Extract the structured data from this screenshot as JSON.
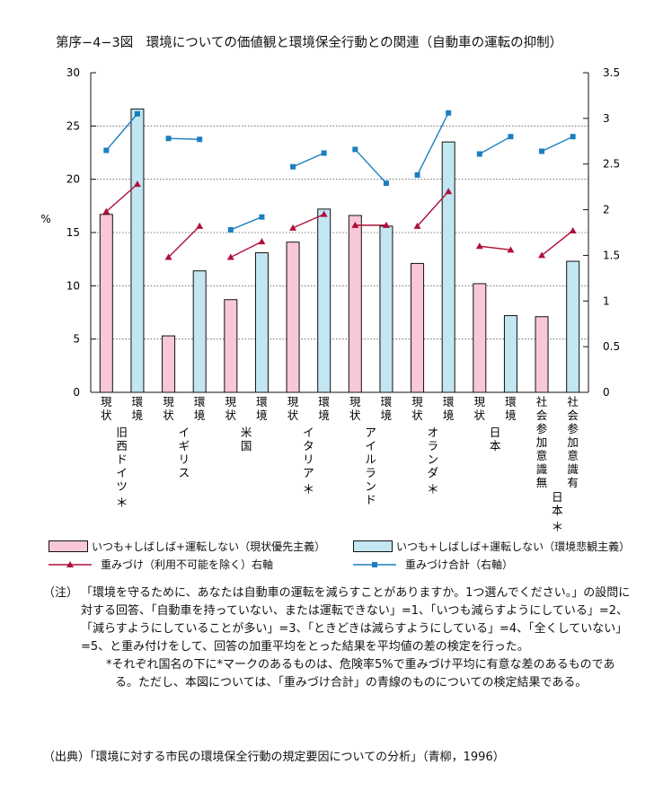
{
  "title": "第序−4−3図　環境についての価値観と環境保全行動との関連（自動車の運転の抑制）",
  "chart_data": {
    "type": "bar",
    "title": "第序−4−3図　環境についての価値観と環境保全行動との関連（自動車の運転の抑制）",
    "ylabel": "%",
    "ylim": [
      0,
      30
    ],
    "y_ticks": [
      "0",
      "5",
      "10",
      "15",
      "20",
      "25",
      "30"
    ],
    "y2lim": [
      0,
      3.5
    ],
    "y2_ticks": [
      "0",
      "0.5",
      "1",
      "1.5",
      "2",
      "2.5",
      "3",
      "3.5"
    ],
    "grid": "dotted horizontal",
    "categories": [
      "現状",
      "環境",
      "現状",
      "環境",
      "現状",
      "環境",
      "現状",
      "環境",
      "現状",
      "環境",
      "現状",
      "環境",
      "現状",
      "環境",
      "社会参加意識無",
      "社会参加意識有"
    ],
    "groups": [
      {
        "label": "旧西ドイツ",
        "mark": "＊"
      },
      {
        "label": "イギリス",
        "mark": ""
      },
      {
        "label": "米国",
        "mark": ""
      },
      {
        "label": "イタリア",
        "mark": "＊"
      },
      {
        "label": "アイルランド",
        "mark": ""
      },
      {
        "label": "オランダ",
        "mark": "＊"
      },
      {
        "label": "日本",
        "mark": ""
      },
      {
        "label": "日本",
        "mark": "＊"
      }
    ],
    "series": [
      {
        "name": "いつも+しばしば+運転しない（現状優先主義）",
        "axis": "left",
        "kind": "bar",
        "color": "#f9c8d6",
        "values": [
          16.7,
          null,
          5.3,
          null,
          8.7,
          null,
          14.1,
          null,
          16.6,
          null,
          12.1,
          null,
          10.2,
          null,
          7.1,
          null
        ]
      },
      {
        "name": "いつも+しばしば+運転しない（環境悲観主義）",
        "axis": "left",
        "kind": "bar",
        "color": "#c2e6f2",
        "values": [
          null,
          26.6,
          null,
          11.4,
          null,
          13.1,
          null,
          17.2,
          null,
          15.6,
          null,
          23.5,
          null,
          7.2,
          null,
          12.3
        ]
      },
      {
        "name": "重みづけ（利用不可能を除く）右軸",
        "axis": "right",
        "kind": "line",
        "color": "#b0103a",
        "values": [
          1.98,
          2.28,
          1.48,
          1.82,
          1.48,
          1.65,
          1.8,
          1.95,
          1.83,
          1.83,
          1.82,
          2.2,
          1.6,
          1.56,
          1.5,
          1.77
        ]
      },
      {
        "name": "重みづけ合計（右軸）",
        "axis": "right",
        "kind": "line",
        "color": "#1a7fc0",
        "values": [
          2.65,
          3.05,
          2.78,
          2.77,
          1.78,
          1.92,
          2.47,
          2.62,
          2.66,
          2.29,
          2.38,
          3.06,
          2.61,
          2.8,
          2.64,
          2.8
        ]
      }
    ],
    "line_segments": [
      [
        0,
        1
      ],
      [
        2,
        3
      ],
      [
        4,
        5
      ],
      [
        6,
        7
      ],
      [
        8,
        9
      ],
      [
        10,
        11
      ],
      [
        12,
        13
      ],
      [
        14,
        15
      ]
    ]
  },
  "legend": {
    "bar_current": "いつも+しばしば+運転しない（現状優先主義）",
    "bar_env": "いつも+しばしば+運転しない（環境悲観主義）",
    "line_weighted": "重みづけ（利用不可能を除く）右軸",
    "line_total": "重みづけ合計（右軸）"
  },
  "notes": {
    "label": "（注）",
    "text": "「環境を守るために、あなたは自動車の運転を減らすことがありますか。1つ選んでください。」の設問に対する回答、「自動車を持っていない、または運転できない」=1、「いつも減らすようにしている」=2、「減らすようにしていることが多い」=3、「ときどきは減らすようにしている」=4、「全くしていない」=5、と重み付けをして、回答の加重平均をとった結果を平均値の差の検定を行った。",
    "asterisk": "*それぞれ国名の下に*マークのあるものは、危険率5%で重みづけ平均に有意な差のあるものである。ただし、本図については、「重みづけ合計」の青線のものについての検定結果である。"
  },
  "source": {
    "label": "（出典）",
    "text": "「環境に対する市民の環境保全行動の規定要因についての分析」（青柳，1996）"
  }
}
